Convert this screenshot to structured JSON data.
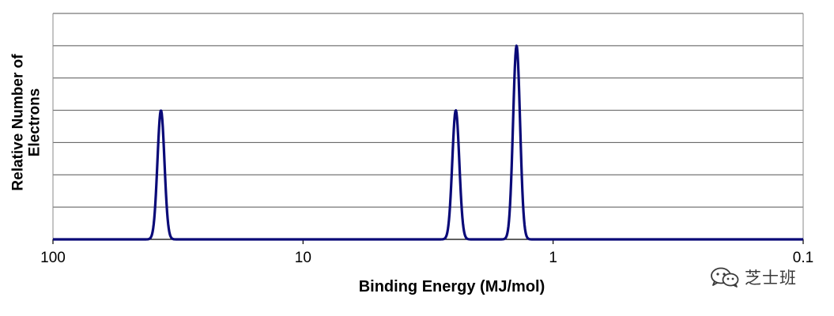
{
  "chart_data": {
    "type": "line",
    "title": "",
    "xlabel": "Binding Energy (MJ/mol)",
    "ylabel_lines": [
      "Relative Number of",
      "Electrons"
    ],
    "x_scale": "log",
    "x_reversed": true,
    "xlim": [
      100,
      0.1
    ],
    "ylim": [
      0,
      7
    ],
    "x_ticks": [
      {
        "value": 100,
        "label": "100"
      },
      {
        "value": 10,
        "label": "10"
      },
      {
        "value": 1,
        "label": "1"
      },
      {
        "value": 0.1,
        "label": "0.1"
      }
    ],
    "y_gridlines": [
      1,
      2,
      3,
      4,
      5,
      6,
      7
    ],
    "grid": true,
    "peaks": [
      {
        "x": 37,
        "height": 4
      },
      {
        "x": 2.45,
        "height": 4
      },
      {
        "x": 1.4,
        "height": 6
      }
    ],
    "series_color": "#0a0a78"
  },
  "watermark": {
    "icon": "wechat-icon",
    "text": "芝士班"
  }
}
